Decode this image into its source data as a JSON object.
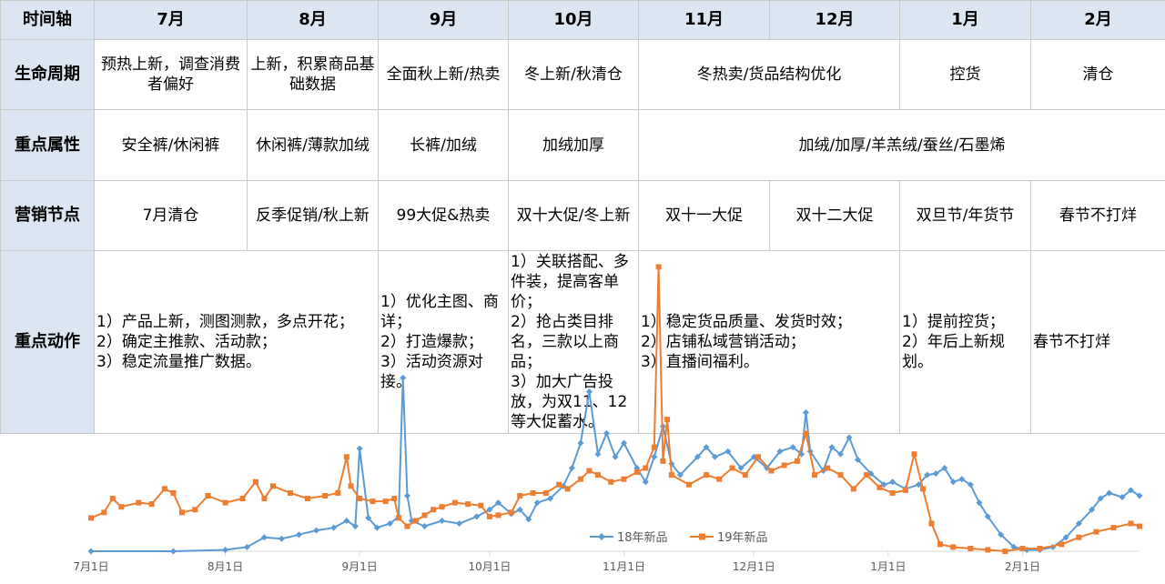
{
  "table": {
    "months_header": "时间轴",
    "months": [
      "7月",
      "8月",
      "9月",
      "10月",
      "11月",
      "12月",
      "1月",
      "2月"
    ],
    "lifecycle": {
      "label": "生命周期",
      "cells": [
        "预热上新，调查消费者偏好",
        "上新，积累商品基础数据",
        "全面秋上新/热卖",
        "冬上新/秋清仓",
        "冬热卖/货品结构优化",
        "控货",
        "清仓"
      ]
    },
    "attributes": {
      "label": "重点属性",
      "cells": [
        "安全裤/休闲裤",
        "休闲裤/薄款加绒",
        "长裤/加绒",
        "加绒加厚",
        "加绒/加厚/羊羔绒/蚕丝/石墨烯"
      ]
    },
    "marketing": {
      "label": "营销节点",
      "cells": [
        "7月清仓",
        "反季促销/秋上新",
        "99大促&热卖",
        "双十大促/冬上新",
        "双十一大促",
        "双十二大促",
        "双旦节/年货节",
        "春节不打烊"
      ]
    },
    "actions": {
      "label": "重点动作",
      "cells": [
        "1）产品上新，测图测款，多点开花；\n2）确定主推款、活动款；\n3）稳定流量推广数据。",
        "1）优化主图、商详；\n2）打造爆款；\n3）活动资源对接。",
        "1）关联搭配、多件装，提高客单价；\n2）抢占类目排名，三款以上商品；\n3）加大广告投放，为双11、12等大促蓄水。",
        "1）稳定货品质量、发货时效；\n2）店铺私域营销活动；\n3）直播间福利。",
        "1）提前控货；\n2）年后上新规划。",
        "春节不打烊"
      ]
    }
  },
  "chart_data": {
    "type": "line",
    "title": "",
    "xlabel": "",
    "ylabel": "",
    "x_tick_labels": [
      "7月1日",
      "8月1日",
      "9月1日",
      "10月1日",
      "11月1日",
      "12月1日",
      "1月1日",
      "2月1日"
    ],
    "x_tick_dates": [
      "2019-07-01",
      "2019-08-01",
      "2019-09-01",
      "2019-10-01",
      "2019-11-01",
      "2019-12-01",
      "2020-01-01",
      "2020-02-01"
    ],
    "y_axis_labels": "none",
    "legend_position": "bottom-center",
    "series": [
      {
        "name": "18年新品",
        "color": "#5b9bd5",
        "marker": "diamond",
        "points": [
          [
            "2019-07-01",
            0
          ],
          [
            "2019-07-20",
            0
          ],
          [
            "2019-08-01",
            1
          ],
          [
            "2019-08-06",
            3
          ],
          [
            "2019-08-10",
            10
          ],
          [
            "2019-08-14",
            9
          ],
          [
            "2019-08-18",
            12
          ],
          [
            "2019-08-22",
            15
          ],
          [
            "2019-08-26",
            17
          ],
          [
            "2019-08-29",
            22
          ],
          [
            "2019-08-31",
            18
          ],
          [
            "2019-09-01",
            74
          ],
          [
            "2019-09-03",
            24
          ],
          [
            "2019-09-05",
            17
          ],
          [
            "2019-09-08",
            20
          ],
          [
            "2019-09-10",
            25
          ],
          [
            "2019-09-11",
            125
          ],
          [
            "2019-09-12",
            40
          ],
          [
            "2019-09-13",
            22
          ],
          [
            "2019-09-16",
            18
          ],
          [
            "2019-09-20",
            22
          ],
          [
            "2019-09-24",
            20
          ],
          [
            "2019-09-28",
            25
          ],
          [
            "2019-10-01",
            30
          ],
          [
            "2019-10-03",
            35
          ],
          [
            "2019-10-06",
            27
          ],
          [
            "2019-10-08",
            30
          ],
          [
            "2019-10-10",
            23
          ],
          [
            "2019-10-12",
            35
          ],
          [
            "2019-10-15",
            38
          ],
          [
            "2019-10-18",
            47
          ],
          [
            "2019-10-20",
            60
          ],
          [
            "2019-10-22",
            78
          ],
          [
            "2019-10-24",
            115
          ],
          [
            "2019-10-26",
            70
          ],
          [
            "2019-10-28",
            85
          ],
          [
            "2019-10-30",
            68
          ],
          [
            "2019-11-01",
            78
          ],
          [
            "2019-11-04",
            60
          ],
          [
            "2019-11-06",
            50
          ],
          [
            "2019-11-08",
            68
          ],
          [
            "2019-11-10",
            90
          ],
          [
            "2019-11-12",
            63
          ],
          [
            "2019-11-14",
            55
          ],
          [
            "2019-11-18",
            68
          ],
          [
            "2019-11-20",
            75
          ],
          [
            "2019-11-22",
            68
          ],
          [
            "2019-11-25",
            72
          ],
          [
            "2019-11-28",
            60
          ],
          [
            "2019-12-01",
            68
          ],
          [
            "2019-12-04",
            60
          ],
          [
            "2019-12-07",
            72
          ],
          [
            "2019-12-10",
            75
          ],
          [
            "2019-12-12",
            70
          ],
          [
            "2019-12-13",
            100
          ],
          [
            "2019-12-14",
            72
          ],
          [
            "2019-12-17",
            58
          ],
          [
            "2019-12-19",
            75
          ],
          [
            "2019-12-21",
            70
          ],
          [
            "2019-12-23",
            82
          ],
          [
            "2019-12-25",
            66
          ],
          [
            "2019-12-28",
            56
          ],
          [
            "2019-12-31",
            48
          ],
          [
            "2020-01-02",
            50
          ],
          [
            "2020-01-05",
            45
          ],
          [
            "2020-01-08",
            48
          ],
          [
            "2020-01-10",
            55
          ],
          [
            "2020-01-12",
            56
          ],
          [
            "2020-01-14",
            60
          ],
          [
            "2020-01-16",
            50
          ],
          [
            "2020-01-18",
            52
          ],
          [
            "2020-01-20",
            48
          ],
          [
            "2020-01-22",
            35
          ],
          [
            "2020-01-24",
            25
          ],
          [
            "2020-01-27",
            12
          ],
          [
            "2020-01-30",
            3
          ],
          [
            "2020-02-02",
            1
          ],
          [
            "2020-02-05",
            1
          ],
          [
            "2020-02-08",
            3
          ],
          [
            "2020-02-11",
            10
          ],
          [
            "2020-02-14",
            20
          ],
          [
            "2020-02-17",
            30
          ],
          [
            "2020-02-19",
            38
          ],
          [
            "2020-02-21",
            42
          ],
          [
            "2020-02-24",
            39
          ],
          [
            "2020-02-26",
            44
          ],
          [
            "2020-02-28",
            40
          ]
        ]
      },
      {
        "name": "19年新品",
        "color": "#ed7d31",
        "marker": "square",
        "points": [
          [
            "2019-07-01",
            24
          ],
          [
            "2019-07-04",
            28
          ],
          [
            "2019-07-06",
            38
          ],
          [
            "2019-07-08",
            32
          ],
          [
            "2019-07-12",
            35
          ],
          [
            "2019-07-15",
            34
          ],
          [
            "2019-07-18",
            45
          ],
          [
            "2019-07-20",
            42
          ],
          [
            "2019-07-22",
            28
          ],
          [
            "2019-07-25",
            30
          ],
          [
            "2019-07-28",
            40
          ],
          [
            "2019-08-01",
            35
          ],
          [
            "2019-08-05",
            38
          ],
          [
            "2019-08-08",
            50
          ],
          [
            "2019-08-10",
            38
          ],
          [
            "2019-08-12",
            47
          ],
          [
            "2019-08-16",
            42
          ],
          [
            "2019-08-20",
            38
          ],
          [
            "2019-08-24",
            40
          ],
          [
            "2019-08-27",
            42
          ],
          [
            "2019-08-29",
            68
          ],
          [
            "2019-08-30",
            47
          ],
          [
            "2019-09-01",
            38
          ],
          [
            "2019-09-04",
            36
          ],
          [
            "2019-09-07",
            36
          ],
          [
            "2019-09-09",
            38
          ],
          [
            "2019-09-10",
            24
          ],
          [
            "2019-09-12",
            18
          ],
          [
            "2019-09-14",
            22
          ],
          [
            "2019-09-16",
            26
          ],
          [
            "2019-09-18",
            30
          ],
          [
            "2019-09-20",
            32
          ],
          [
            "2019-09-23",
            35
          ],
          [
            "2019-09-26",
            34
          ],
          [
            "2019-09-29",
            33
          ],
          [
            "2019-10-01",
            25
          ],
          [
            "2019-10-03",
            26
          ],
          [
            "2019-10-06",
            28
          ],
          [
            "2019-10-08",
            40
          ],
          [
            "2019-10-11",
            42
          ],
          [
            "2019-10-14",
            42
          ],
          [
            "2019-10-17",
            48
          ],
          [
            "2019-10-19",
            45
          ],
          [
            "2019-10-22",
            52
          ],
          [
            "2019-10-24",
            58
          ],
          [
            "2019-10-26",
            55
          ],
          [
            "2019-10-29",
            50
          ],
          [
            "2019-11-01",
            52
          ],
          [
            "2019-11-04",
            57
          ],
          [
            "2019-11-06",
            60
          ],
          [
            "2019-11-08",
            75
          ],
          [
            "2019-11-09",
            205
          ],
          [
            "2019-11-10",
            65
          ],
          [
            "2019-11-11",
            95
          ],
          [
            "2019-11-12",
            55
          ],
          [
            "2019-11-16",
            48
          ],
          [
            "2019-11-20",
            55
          ],
          [
            "2019-11-23",
            52
          ],
          [
            "2019-11-26",
            60
          ],
          [
            "2019-11-29",
            55
          ],
          [
            "2019-12-02",
            68
          ],
          [
            "2019-12-05",
            58
          ],
          [
            "2019-12-08",
            62
          ],
          [
            "2019-12-11",
            65
          ],
          [
            "2019-12-13",
            85
          ],
          [
            "2019-12-15",
            55
          ],
          [
            "2019-12-18",
            60
          ],
          [
            "2019-12-21",
            55
          ],
          [
            "2019-12-24",
            45
          ],
          [
            "2019-12-27",
            55
          ],
          [
            "2019-12-30",
            46
          ],
          [
            "2020-01-02",
            42
          ],
          [
            "2020-01-05",
            44
          ],
          [
            "2020-01-07",
            70
          ],
          [
            "2020-01-09",
            45
          ],
          [
            "2020-01-11",
            20
          ],
          [
            "2020-01-13",
            5
          ],
          [
            "2020-01-16",
            3
          ],
          [
            "2020-01-20",
            2
          ],
          [
            "2020-01-24",
            1
          ],
          [
            "2020-01-28",
            0
          ],
          [
            "2020-02-01",
            2
          ],
          [
            "2020-02-05",
            2
          ],
          [
            "2020-02-10",
            5
          ],
          [
            "2020-02-14",
            10
          ],
          [
            "2020-02-18",
            14
          ],
          [
            "2020-02-22",
            17
          ],
          [
            "2020-02-26",
            20
          ],
          [
            "2020-02-28",
            18
          ]
        ]
      }
    ]
  }
}
